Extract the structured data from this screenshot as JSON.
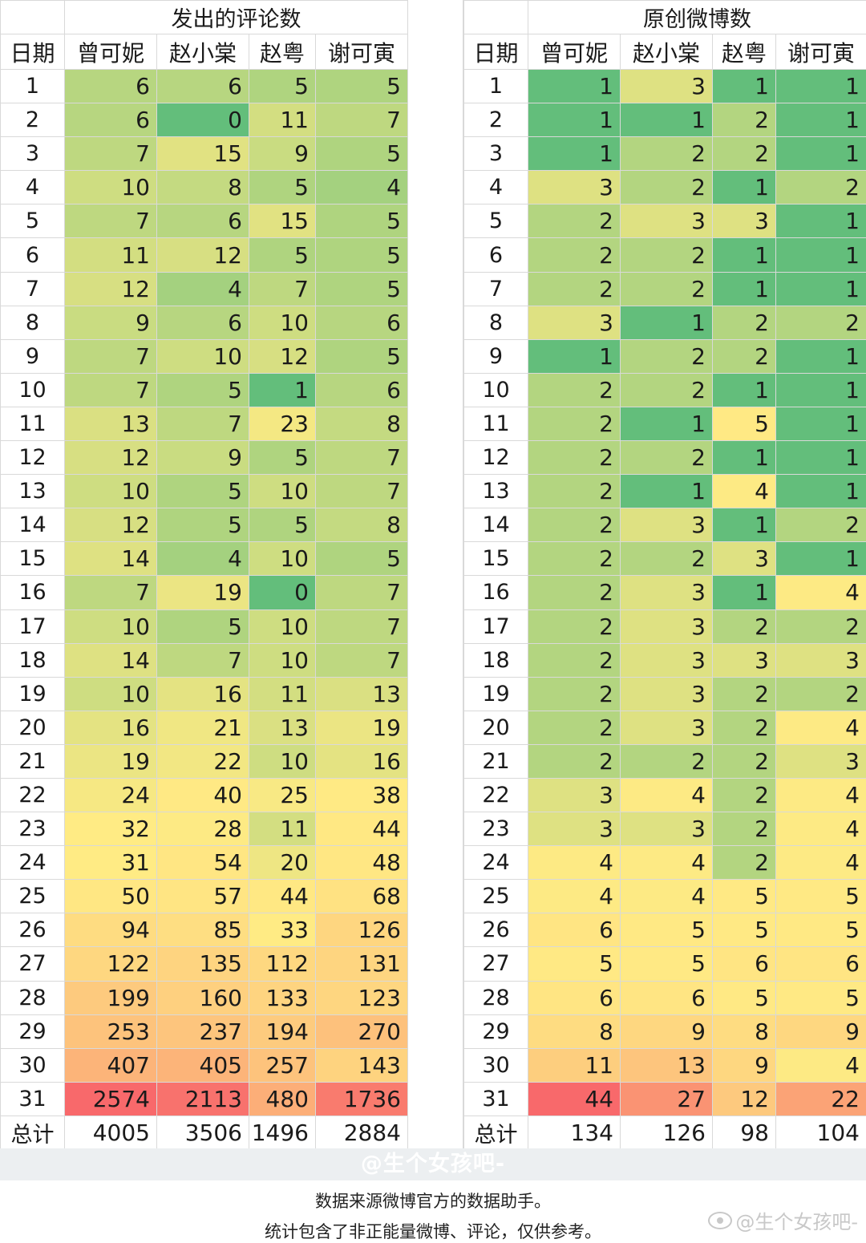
{
  "chart_data": [
    {
      "type": "table",
      "title": "发出的评论数",
      "columns": [
        "日期",
        "曾可妮",
        "赵小棠",
        "赵粤",
        "谢可寅"
      ],
      "rows": [
        [
          1,
          6,
          6,
          5,
          5
        ],
        [
          2,
          6,
          0,
          11,
          7
        ],
        [
          3,
          7,
          15,
          9,
          5
        ],
        [
          4,
          10,
          8,
          5,
          4
        ],
        [
          5,
          7,
          6,
          15,
          5
        ],
        [
          6,
          11,
          12,
          5,
          5
        ],
        [
          7,
          12,
          4,
          7,
          5
        ],
        [
          8,
          9,
          6,
          10,
          6
        ],
        [
          9,
          7,
          10,
          12,
          5
        ],
        [
          10,
          7,
          5,
          1,
          6
        ],
        [
          11,
          13,
          7,
          23,
          8
        ],
        [
          12,
          12,
          9,
          5,
          7
        ],
        [
          13,
          10,
          5,
          10,
          7
        ],
        [
          14,
          12,
          5,
          5,
          8
        ],
        [
          15,
          14,
          4,
          10,
          5
        ],
        [
          16,
          7,
          19,
          0,
          7
        ],
        [
          17,
          10,
          5,
          10,
          7
        ],
        [
          18,
          14,
          7,
          10,
          7
        ],
        [
          19,
          10,
          16,
          11,
          13
        ],
        [
          20,
          16,
          21,
          13,
          19
        ],
        [
          21,
          19,
          22,
          10,
          16
        ],
        [
          22,
          24,
          40,
          25,
          38
        ],
        [
          23,
          32,
          28,
          11,
          44
        ],
        [
          24,
          31,
          54,
          20,
          48
        ],
        [
          25,
          50,
          57,
          44,
          68
        ],
        [
          26,
          94,
          85,
          33,
          126
        ],
        [
          27,
          122,
          135,
          112,
          131
        ],
        [
          28,
          199,
          160,
          133,
          123
        ],
        [
          29,
          253,
          237,
          194,
          270
        ],
        [
          30,
          407,
          405,
          257,
          143
        ],
        [
          31,
          2574,
          2113,
          480,
          1736
        ]
      ],
      "total_label": "总计",
      "totals": [
        4005,
        3506,
        1496,
        2884
      ],
      "color_scale": {
        "type": "log",
        "low": "#63be7b",
        "mid": "#ffeb84",
        "high": "#f8696b",
        "min": 1,
        "max": 2574
      }
    },
    {
      "type": "table",
      "title": "原创微博数",
      "columns": [
        "日期",
        "曾可妮",
        "赵小棠",
        "赵粤",
        "谢可寅"
      ],
      "rows": [
        [
          1,
          1,
          3,
          1,
          1
        ],
        [
          2,
          1,
          1,
          2,
          1
        ],
        [
          3,
          1,
          2,
          2,
          1
        ],
        [
          4,
          3,
          2,
          1,
          2
        ],
        [
          5,
          2,
          3,
          3,
          1
        ],
        [
          6,
          2,
          2,
          1,
          1
        ],
        [
          7,
          2,
          2,
          1,
          1
        ],
        [
          8,
          3,
          1,
          2,
          2
        ],
        [
          9,
          1,
          2,
          2,
          1
        ],
        [
          10,
          2,
          2,
          1,
          1
        ],
        [
          11,
          2,
          1,
          5,
          1
        ],
        [
          12,
          2,
          2,
          1,
          1
        ],
        [
          13,
          2,
          1,
          4,
          1
        ],
        [
          14,
          2,
          3,
          1,
          2
        ],
        [
          15,
          2,
          2,
          3,
          1
        ],
        [
          16,
          2,
          3,
          1,
          4
        ],
        [
          17,
          2,
          3,
          2,
          2
        ],
        [
          18,
          2,
          3,
          3,
          3
        ],
        [
          19,
          2,
          3,
          2,
          2
        ],
        [
          20,
          2,
          3,
          2,
          4
        ],
        [
          21,
          2,
          2,
          2,
          3
        ],
        [
          22,
          3,
          4,
          2,
          4
        ],
        [
          23,
          3,
          3,
          2,
          4
        ],
        [
          24,
          4,
          4,
          2,
          4
        ],
        [
          25,
          4,
          4,
          5,
          5
        ],
        [
          26,
          6,
          5,
          5,
          5
        ],
        [
          27,
          5,
          5,
          6,
          6
        ],
        [
          28,
          6,
          6,
          5,
          5
        ],
        [
          29,
          8,
          9,
          8,
          9
        ],
        [
          30,
          11,
          13,
          9,
          4
        ],
        [
          31,
          44,
          27,
          12,
          22
        ]
      ],
      "total_label": "总计",
      "totals": [
        134,
        126,
        98,
        104
      ],
      "color_scale": {
        "type": "log",
        "low": "#63be7b",
        "mid": "#ffeb84",
        "high": "#f8696b",
        "min": 1,
        "max": 44
      }
    }
  ],
  "footer": {
    "watermark_band": "@生个女孩吧-",
    "source_note": "数据来源微博官方的数据助手。",
    "disclaimer": "统计包含了非正能量微博、评论，仅供参考。",
    "corner_watermark": "@生个女孩吧-",
    "corner_icon": "weibo-eye-icon"
  }
}
